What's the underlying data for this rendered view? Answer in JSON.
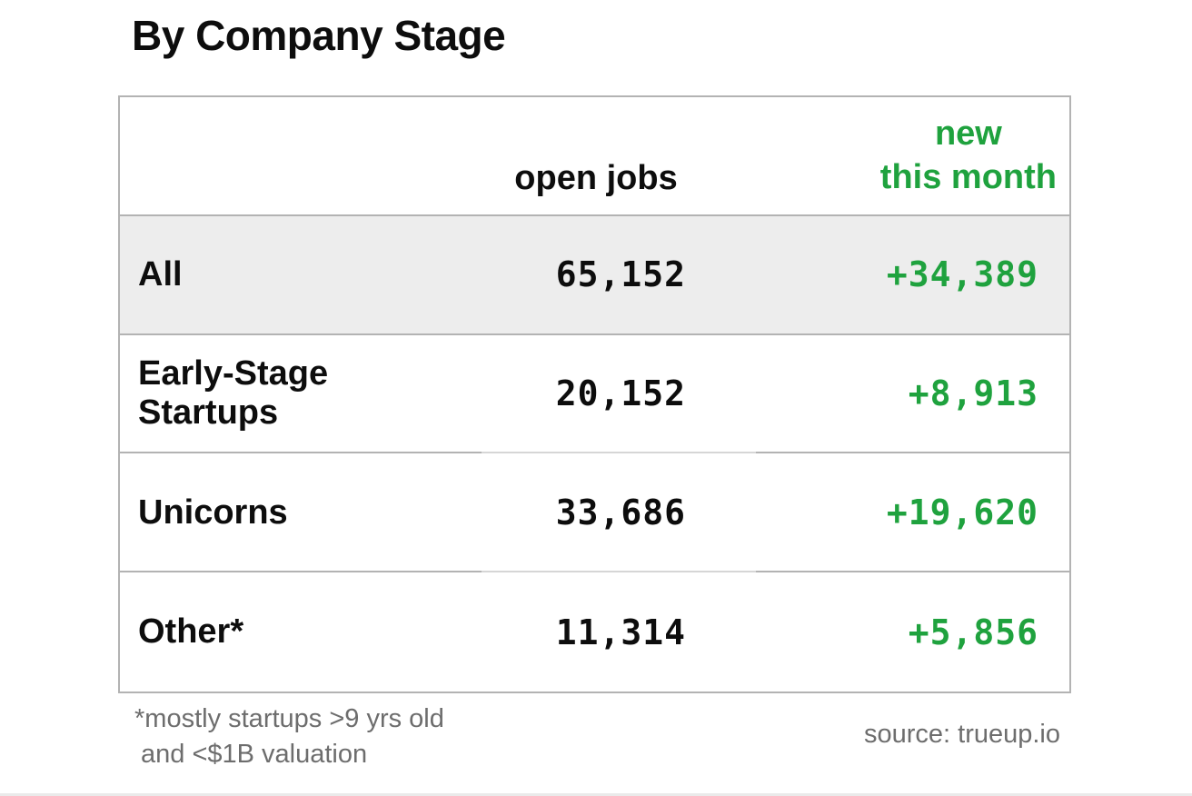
{
  "title": "By Company Stage",
  "table": {
    "header": {
      "open_jobs": "open jobs",
      "new_line1": "new",
      "new_line2": "this month"
    },
    "rows": [
      {
        "label": "All",
        "open_jobs": "65,152",
        "new": "+34,389"
      },
      {
        "label": "Early-Stage Startups",
        "open_jobs": "20,152",
        "new": "+8,913"
      },
      {
        "label": "Unicorns",
        "open_jobs": "33,686",
        "new": "+19,620"
      },
      {
        "label": "Other*",
        "open_jobs": "11,314",
        "new": "+5,856"
      }
    ]
  },
  "footnote": {
    "line1": "*mostly startups >9 yrs old",
    "line2": "and <$1B valuation"
  },
  "source": "source: trueup.io",
  "colors": {
    "accent_green": "#1fa23e",
    "row_highlight": "#ededed",
    "border": "#b3b3b3",
    "muted_text": "#6d6d6d"
  },
  "chart_data": {
    "type": "table",
    "title": "By Company Stage",
    "columns": [
      "",
      "open jobs",
      "new this month"
    ],
    "rows": [
      [
        "All",
        65152,
        34389
      ],
      [
        "Early-Stage Startups",
        20152,
        8913
      ],
      [
        "Unicorns",
        33686,
        19620
      ],
      [
        "Other*",
        11314,
        5856
      ]
    ],
    "footnote": "*mostly startups >9 yrs old and <$1B valuation",
    "source": "source: trueup.io",
    "notes": "new this month values displayed with leading + in green; All row highlighted gray"
  }
}
